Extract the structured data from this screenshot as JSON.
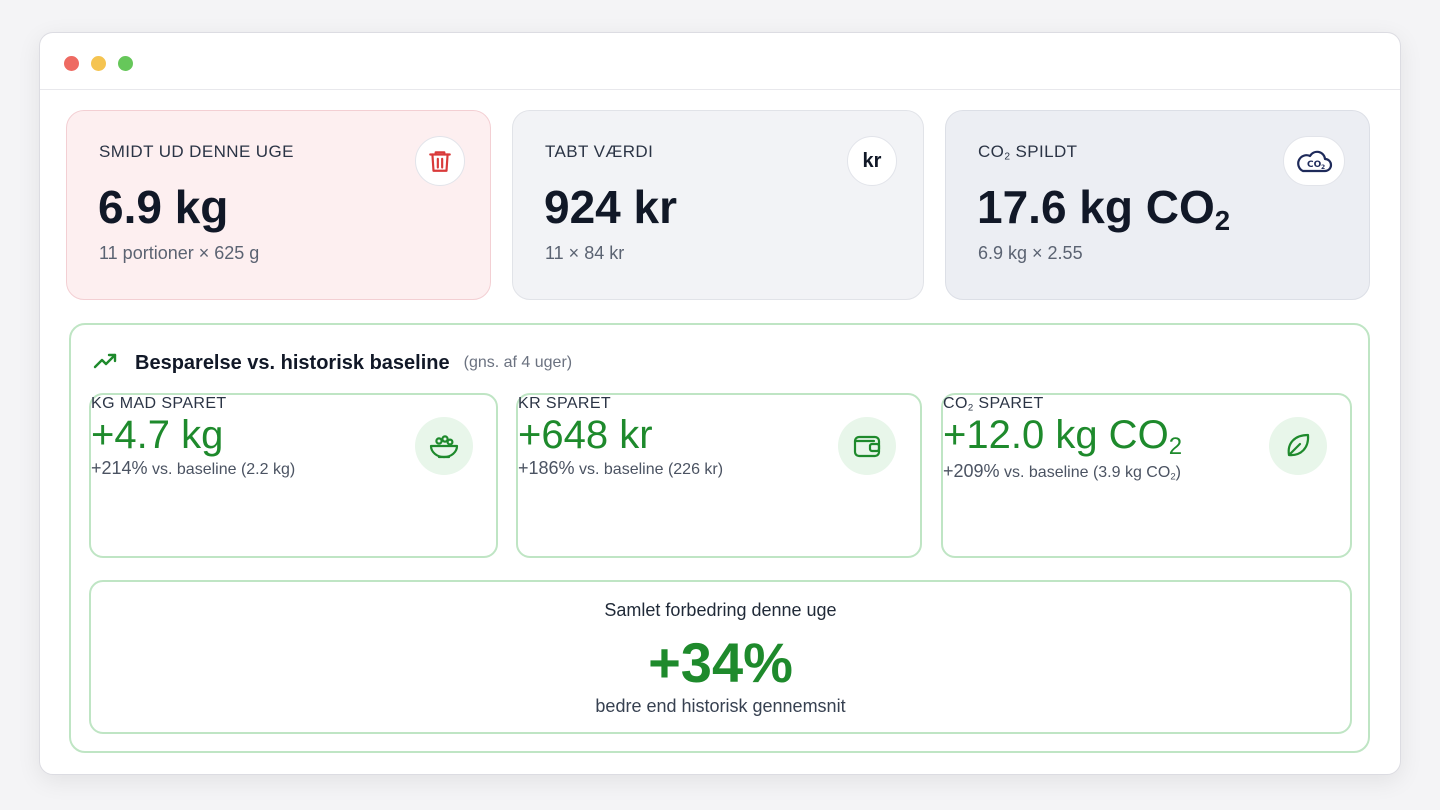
{
  "kpis": {
    "thrown": {
      "label": "SMIDT UD DENNE UGE",
      "value": "6.9 kg",
      "sub": "11 portioner × 625 g",
      "icon": "trash-icon",
      "color": "#d93a3a"
    },
    "lost_value": {
      "label": "TABT VÆRDI",
      "value": "924 kr",
      "sub": "11 × 84 kr",
      "icon_text": "kr"
    },
    "co2_wasted": {
      "label_prefix": "CO",
      "label_sub": "2",
      "label_suffix": " SPILDT",
      "value_prefix": "17.6 kg CO",
      "value_sub": "2",
      "sub": "6.9 kg × 2.55",
      "icon": "co2-cloud-icon",
      "color": "#1e2a5a"
    }
  },
  "savings": {
    "title": "Besparelse vs. historisk baseline",
    "note": "(gns. af 4 uger)",
    "icon": "trending-up-icon",
    "accent": "#1e8a2c",
    "kg": {
      "label": "KG MAD SPARET",
      "value": "+4.7 kg",
      "sub_pct": "+214%",
      "sub_text": " vs. baseline (2.2 kg)",
      "icon": "bowl-icon"
    },
    "kr": {
      "label": "KR SPARET",
      "value": "+648 kr",
      "sub_pct": "+186%",
      "sub_text": " vs. baseline (226 kr)",
      "icon": "wallet-icon"
    },
    "co2": {
      "label_prefix": "CO",
      "label_sub": "2",
      "label_suffix": " SPARET",
      "value_prefix": "+12.0 kg CO",
      "value_sub": "2",
      "sub_pct": "+209%",
      "sub_text": " vs. baseline (3.9 kg CO",
      "sub_sub": "2",
      "sub_end": ")",
      "icon": "leaf-icon"
    },
    "total": {
      "label": "Samlet forbedring denne uge",
      "value": "+34%",
      "sub": "bedre end historisk gennemsnit"
    }
  }
}
